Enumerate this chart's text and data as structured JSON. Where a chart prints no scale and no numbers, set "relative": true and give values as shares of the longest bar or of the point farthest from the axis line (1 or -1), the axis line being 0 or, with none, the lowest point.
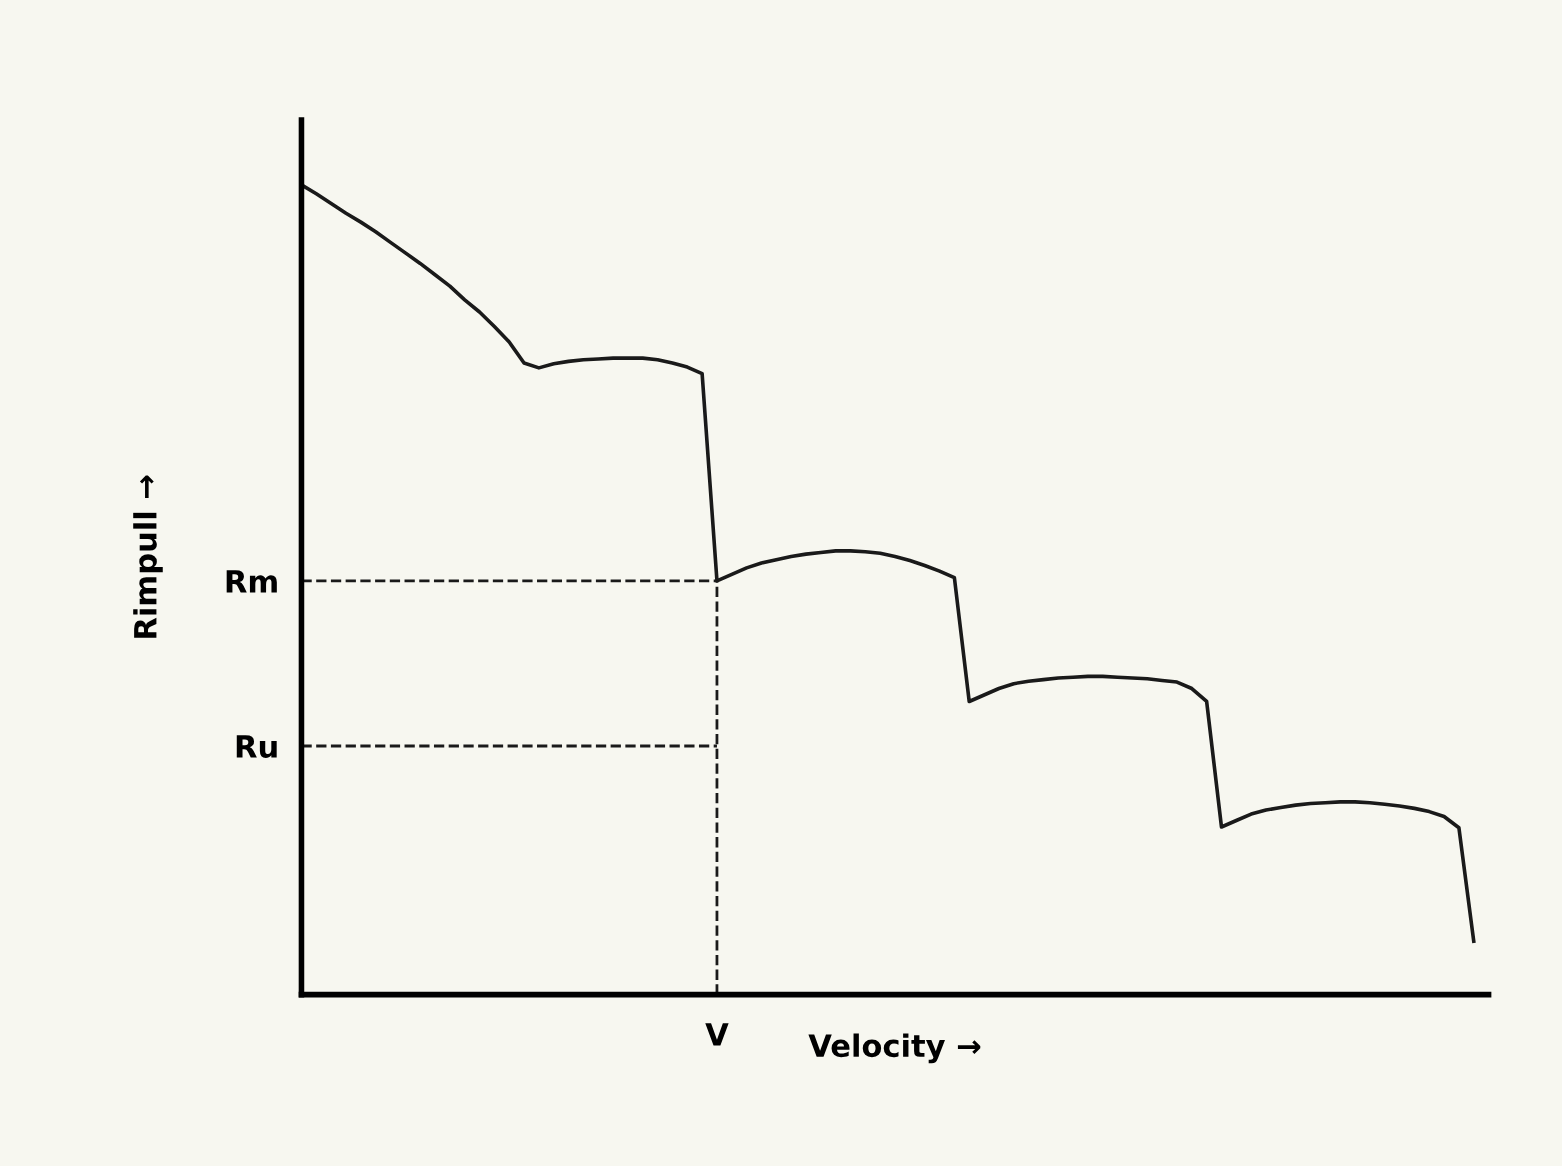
{
  "chart_data": {
    "type": "line",
    "relative": true,
    "xlabel": "Velocity →",
    "ylabel": "Rimpull →",
    "categories": [
      null,
      null,
      null,
      null,
      null,
      null,
      null,
      null,
      null,
      null,
      null,
      null,
      null,
      null,
      null,
      null,
      null,
      null,
      null,
      null,
      null,
      null,
      null,
      null,
      null,
      null,
      null,
      null,
      null,
      null,
      null,
      null,
      null,
      null,
      null,
      null,
      null,
      null,
      null,
      null,
      null,
      null,
      null,
      null,
      null,
      null,
      null,
      null,
      null,
      null,
      null,
      null,
      null,
      null,
      null,
      null,
      null,
      null,
      null,
      null,
      null,
      null,
      null,
      null,
      null,
      null,
      null,
      null,
      null,
      null,
      null,
      null,
      null,
      null,
      null,
      null,
      null,
      null,
      null,
      null
    ],
    "series": [
      {
        "color": "#1a1a1a",
        "values": [
          1.0,
          0.989,
          0.977,
          0.965,
          0.954,
          0.942,
          0.929,
          0.916,
          0.903,
          0.889,
          0.875,
          0.858,
          0.843,
          0.825,
          0.806,
          0.78,
          0.774,
          0.779,
          0.782,
          0.784,
          0.785,
          0.786,
          0.786,
          0.786,
          0.784,
          0.78,
          0.775,
          0.767,
          0.511,
          0.519,
          0.527,
          0.533,
          0.537,
          0.541,
          0.544,
          0.546,
          0.548,
          0.548,
          0.547,
          0.545,
          0.541,
          0.536,
          0.53,
          0.523,
          0.515,
          0.362,
          0.37,
          0.378,
          0.384,
          0.387,
          0.389,
          0.391,
          0.392,
          0.393,
          0.393,
          0.392,
          0.391,
          0.39,
          0.388,
          0.386,
          0.378,
          0.362,
          0.207,
          0.215,
          0.223,
          0.228,
          0.231,
          0.234,
          0.236,
          0.237,
          0.238,
          0.238,
          0.237,
          0.235,
          0.233,
          0.23,
          0.226,
          0.22,
          0.206,
          0.066
        ]
      }
    ],
    "ref_lines": [
      {
        "axis": "y",
        "value": 0.511,
        "label": "Rm",
        "line_style": "dashed",
        "color": "#1a1a1a"
      },
      {
        "axis": "y",
        "value": 0.307,
        "label": "Ru",
        "line_style": "dashed",
        "color": "#1a1a1a"
      }
    ],
    "annotations": [
      "V"
    ],
    "grid": false,
    "legend": false,
    "marker": "none",
    "line_style": "solid"
  }
}
